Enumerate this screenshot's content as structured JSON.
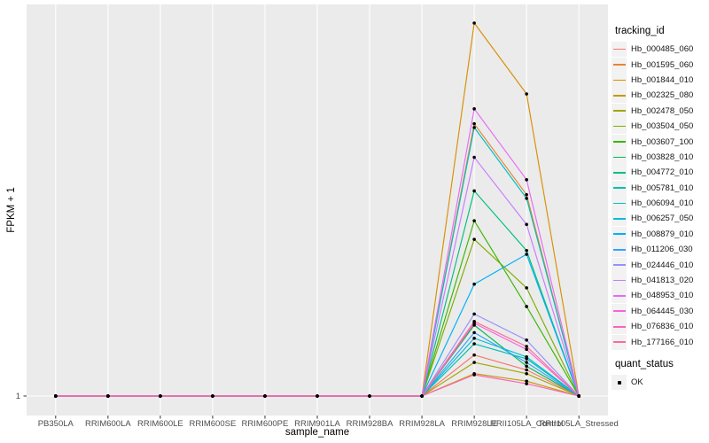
{
  "chart_data": {
    "type": "line",
    "title": "",
    "x_axis": {
      "label": "sample_name",
      "categories": [
        "PB350LA",
        "RRIM600LA",
        "RRIM600LE",
        "RRIM600SE",
        "RRIM600PE",
        "RRIM901LA",
        "RRIM928BA",
        "RRIM928LA",
        "RRIM928LE",
        "RRII105LA_Control",
        "RRII105LA_Stressed"
      ]
    },
    "y_axis": {
      "label": "FPKM + 1",
      "tick_label": "1",
      "scale_note": "Only the value 1 is labeled on the y-axis at the baseline; series values are relative peak heights where 0 = baseline (FPKM+1 = 1) and 1 = tallest visible peak."
    },
    "legend_title": "tracking_id",
    "legend_position": "right",
    "grid": "major vertical gridline per category, horizontal gridline at y = 1",
    "series": [
      {
        "name": "Hb_000485_060",
        "color": "#F8766D",
        "values": [
          0,
          0,
          0,
          0,
          0,
          0,
          0,
          0,
          0.11,
          0.07,
          0
        ]
      },
      {
        "name": "Hb_001595_060",
        "color": "#EA8331",
        "values": [
          0,
          0,
          0,
          0,
          0,
          0,
          0,
          0,
          0.73,
          0.54,
          0
        ]
      },
      {
        "name": "Hb_001844_010",
        "color": "#D89000",
        "values": [
          0,
          0,
          0,
          0,
          0,
          0,
          0,
          0,
          1.0,
          0.81,
          0
        ]
      },
      {
        "name": "Hb_002325_080",
        "color": "#C09B00",
        "values": [
          0,
          0,
          0,
          0,
          0,
          0,
          0,
          0,
          0.06,
          0.04,
          0
        ]
      },
      {
        "name": "Hb_002478_050",
        "color": "#A3A500",
        "values": [
          0,
          0,
          0,
          0,
          0,
          0,
          0,
          0,
          0.09,
          0.06,
          0
        ]
      },
      {
        "name": "Hb_003504_050",
        "color": "#7CAE00",
        "values": [
          0,
          0,
          0,
          0,
          0,
          0,
          0,
          0,
          0.42,
          0.29,
          0
        ]
      },
      {
        "name": "Hb_003607_100",
        "color": "#39B600",
        "values": [
          0,
          0,
          0,
          0,
          0,
          0,
          0,
          0,
          0.47,
          0.24,
          0
        ]
      },
      {
        "name": "Hb_003828_010",
        "color": "#00BB4E",
        "values": [
          0,
          0,
          0,
          0,
          0,
          0,
          0,
          0,
          0.19,
          0.08,
          0
        ]
      },
      {
        "name": "Hb_004772_010",
        "color": "#00BF7D",
        "values": [
          0,
          0,
          0,
          0,
          0,
          0,
          0,
          0,
          0.55,
          0.39,
          0
        ]
      },
      {
        "name": "Hb_005781_010",
        "color": "#00C0AF",
        "values": [
          0,
          0,
          0,
          0,
          0,
          0,
          0,
          0,
          0.14,
          0.1,
          0
        ]
      },
      {
        "name": "Hb_006094_010",
        "color": "#00BFC4",
        "values": [
          0,
          0,
          0,
          0,
          0,
          0,
          0,
          0,
          0.72,
          0.53,
          0
        ]
      },
      {
        "name": "Hb_006257_050",
        "color": "#00BCD8",
        "values": [
          0,
          0,
          0,
          0,
          0,
          0,
          0,
          0,
          0.155,
          0.105,
          0
        ]
      },
      {
        "name": "Hb_008879_010",
        "color": "#00B0F6",
        "values": [
          0,
          0,
          0,
          0,
          0,
          0,
          0,
          0,
          0.3,
          0.38,
          0
        ]
      },
      {
        "name": "Hb_011206_030",
        "color": "#35A2FF",
        "values": [
          0,
          0,
          0,
          0,
          0,
          0,
          0,
          0,
          0.17,
          0.09,
          0
        ]
      },
      {
        "name": "Hb_024446_010",
        "color": "#9590FF",
        "values": [
          0,
          0,
          0,
          0,
          0,
          0,
          0,
          0,
          0.22,
          0.15,
          0
        ]
      },
      {
        "name": "Hb_041813_020",
        "color": "#C77CFF",
        "values": [
          0,
          0,
          0,
          0,
          0,
          0,
          0,
          0,
          0.64,
          0.46,
          0
        ]
      },
      {
        "name": "Hb_048953_010",
        "color": "#E76BF3",
        "values": [
          0,
          0,
          0,
          0,
          0,
          0,
          0,
          0,
          0.77,
          0.58,
          0
        ]
      },
      {
        "name": "Hb_064445_030",
        "color": "#FA62DB",
        "values": [
          0,
          0,
          0,
          0,
          0,
          0,
          0,
          0,
          0.195,
          0.125,
          0
        ]
      },
      {
        "name": "Hb_076836_010",
        "color": "#FF62BC",
        "values": [
          0,
          0,
          0,
          0,
          0,
          0,
          0,
          0,
          0.057,
          0.033,
          0
        ]
      },
      {
        "name": "Hb_177166_010",
        "color": "#FF6A98",
        "values": [
          0,
          0,
          0,
          0,
          0,
          0,
          0,
          0,
          0.2,
          0.133,
          0
        ]
      }
    ],
    "quant_status": {
      "title": "quant_status",
      "items": [
        {
          "label": "OK",
          "marker": "point",
          "marker_color": "#000000"
        }
      ]
    },
    "theme": {
      "panel_background": "#EBEBEB",
      "gridline_color": "#FFFFFF",
      "point_color": "#000000",
      "axis_tick_color": "#333333",
      "tick_label_color": "#4D4D4D",
      "legend_key_background": "#F2F2F2"
    }
  }
}
